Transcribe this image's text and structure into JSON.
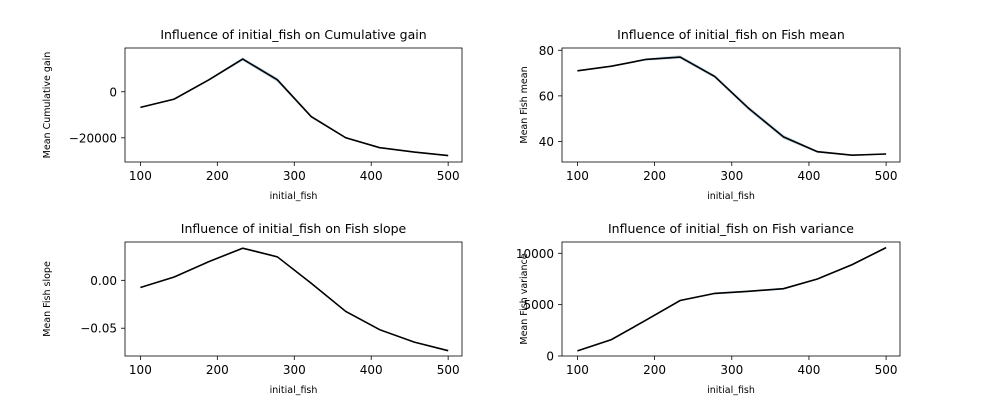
{
  "chart_data": [
    {
      "type": "line",
      "title": "Influence of initial_fish on Cumulative gain",
      "xlabel": "initial_fish",
      "ylabel": "Mean Cumulative gain",
      "x": [
        100,
        144,
        189,
        233,
        278,
        322,
        367,
        411,
        456,
        500
      ],
      "y": [
        -6800,
        -3200,
        5200,
        14200,
        5200,
        -10800,
        -20000,
        -24300,
        -26200,
        -27700
      ],
      "ci_halfwidth": [
        300,
        300,
        400,
        700,
        900,
        500,
        400,
        300,
        300,
        300
      ],
      "xlim": [
        80,
        518
      ],
      "ylim": [
        -30500,
        19000
      ],
      "xticks": [
        100,
        200,
        300,
        400,
        500
      ],
      "yticks": [
        -20000,
        0
      ],
      "ytick_labels": [
        "−20000",
        "0"
      ],
      "grid": false
    },
    {
      "type": "line",
      "title": "Influence of initial_fish on Fish mean",
      "xlabel": "initial_fish",
      "ylabel": "Mean Fish mean",
      "x": [
        100,
        144,
        189,
        233,
        278,
        322,
        367,
        411,
        456,
        500
      ],
      "y": [
        71,
        73,
        76,
        77,
        68.5,
        54.5,
        42,
        35.5,
        34,
        34.5
      ],
      "ci_halfwidth": [
        0.3,
        0.3,
        0.5,
        0.8,
        0.7,
        0.9,
        0.9,
        0.5,
        0.3,
        0.3
      ],
      "xlim": [
        80,
        518
      ],
      "ylim": [
        31,
        81
      ],
      "xticks": [
        100,
        200,
        300,
        400,
        500
      ],
      "yticks": [
        40,
        60,
        80
      ],
      "ytick_labels": [
        "40",
        "60",
        "80"
      ],
      "grid": false
    },
    {
      "type": "line",
      "title": "Influence of initial_fish on Fish slope",
      "xlabel": "initial_fish",
      "ylabel": "Mean Fish slope",
      "x": [
        100,
        144,
        189,
        233,
        278,
        322,
        367,
        411,
        456,
        500
      ],
      "y": [
        -0.0075,
        0.0035,
        0.0195,
        0.0335,
        0.0245,
        -0.003,
        -0.0325,
        -0.0515,
        -0.0645,
        -0.0735
      ],
      "ci_halfwidth": [
        0.0004,
        0.0004,
        0.0005,
        0.0005,
        0.0006,
        0.0008,
        0.0006,
        0.0004,
        0.0004,
        0.0004
      ],
      "xlim": [
        80,
        518
      ],
      "ylim": [
        -0.079,
        0.04
      ],
      "xticks": [
        100,
        200,
        300,
        400,
        500
      ],
      "yticks": [
        -0.05,
        0.0
      ],
      "ytick_labels": [
        "−0.05",
        "0.00"
      ],
      "grid": false
    },
    {
      "type": "line",
      "title": "Influence of initial_fish on Fish variance",
      "xlabel": "initial_fish",
      "ylabel": "Mean Fish variance",
      "x": [
        100,
        144,
        189,
        233,
        278,
        322,
        367,
        411,
        456,
        500
      ],
      "y": [
        500,
        1600,
        3500,
        5400,
        6100,
        6300,
        6550,
        7500,
        8900,
        10550
      ],
      "ci_halfwidth": [
        60,
        60,
        70,
        80,
        90,
        90,
        90,
        80,
        80,
        90
      ],
      "xlim": [
        80,
        518
      ],
      "ylim": [
        0,
        11100
      ],
      "xticks": [
        100,
        200,
        300,
        400,
        500
      ],
      "yticks": [
        0,
        5000,
        10000
      ],
      "ytick_labels": [
        "0",
        "5000",
        "10000"
      ],
      "grid": false
    }
  ]
}
